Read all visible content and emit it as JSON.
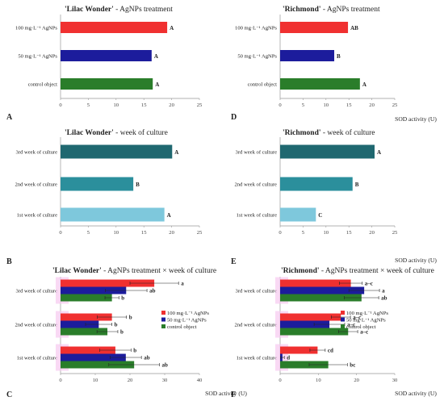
{
  "chart_data": [
    {
      "panel": "A",
      "type": "bar",
      "title": "'Lilac Wonder' - AgNPs treatment",
      "title_cultivar": "'Lilac Wonder'",
      "title_rest": " - AgNPs treatment",
      "xlabel": "",
      "xlim": [
        0,
        25
      ],
      "xticks": [
        0,
        5,
        10,
        15,
        20,
        25
      ],
      "categories": [
        "100 mg·L⁻¹ AgNPs",
        "50 mg·L⁻¹ AgNPs",
        "control object"
      ],
      "series": [
        {
          "values": [
            19.2,
            16.4,
            16.6
          ],
          "colors": [
            "#f03030",
            "#1c1c9c",
            "#2a7d2a"
          ],
          "labels": [
            "A",
            "A",
            "A"
          ]
        }
      ]
    },
    {
      "panel": "D",
      "type": "bar",
      "title": "'Richmond' - AgNPs treatment",
      "title_cultivar": "'Richmond'",
      "title_rest": " - AgNPs treatment",
      "xlabel": "SOD activity (U)",
      "xlim": [
        0,
        25
      ],
      "xticks": [
        0,
        5,
        10,
        15,
        20,
        25
      ],
      "categories": [
        "100 mg·L⁻¹ AgNPs",
        "50 mg·L⁻¹ AgNPs",
        "control object"
      ],
      "series": [
        {
          "values": [
            14.8,
            11.8,
            17.4
          ],
          "colors": [
            "#f03030",
            "#1c1c9c",
            "#2a7d2a"
          ],
          "labels": [
            "AB",
            "B",
            "A"
          ]
        }
      ]
    },
    {
      "panel": "B",
      "type": "bar",
      "title": "'Lilac Wonder' - week of culture",
      "title_cultivar": "'Lilac Wonder'",
      "title_rest": " - week of culture",
      "xlabel": "",
      "xlim": [
        0,
        25
      ],
      "xticks": [
        0,
        5,
        10,
        15,
        20,
        25
      ],
      "categories": [
        "3rd week of culture",
        "2nd week of culture",
        "1st week of culture"
      ],
      "series": [
        {
          "values": [
            20.1,
            13.1,
            18.7
          ],
          "colors": [
            "#1f6870",
            "#2b8f9c",
            "#7ec8dc"
          ],
          "labels": [
            "A",
            "B",
            "A"
          ]
        }
      ]
    },
    {
      "panel": "E",
      "type": "bar",
      "title": "'Richmond' - week of culture",
      "title_cultivar": "'Richmond'",
      "title_rest": " - week of culture",
      "xlabel": "SOD activity (U)",
      "xlim": [
        0,
        25
      ],
      "xticks": [
        0,
        5,
        10,
        15,
        20,
        25
      ],
      "categories": [
        "3rd week of culture",
        "2nd week of culture",
        "1st week of culture"
      ],
      "series": [
        {
          "values": [
            20.6,
            15.8,
            7.8
          ],
          "colors": [
            "#1f6870",
            "#2b8f9c",
            "#7ec8dc"
          ],
          "labels": [
            "A",
            "B",
            "C"
          ]
        }
      ]
    },
    {
      "panel": "C",
      "type": "bar",
      "title": "'Lilac Wonder' - AgNPs treatment × week of culture",
      "title_cultivar": "'Lilac Wonder'",
      "title_rest": " - AgNPs treatment × week of culture",
      "xlabel": "SOD activity (U)",
      "xlim": [
        0,
        40
      ],
      "xticks": [
        0,
        10,
        20,
        30,
        40
      ],
      "categories": [
        "3rd week of culture",
        "2nd week of culture",
        "1st week of culture"
      ],
      "legend": [
        "100 mg·L⁻¹ AgNPs",
        "50 mg·L⁻¹ AgNPs",
        "control object"
      ],
      "legend_position": "right",
      "series": [
        {
          "name": "100 mg·L⁻¹ AgNPs",
          "color": "#f03030",
          "values": [
            27.0,
            14.8,
            15.8
          ],
          "errors": [
            7.0,
            4.2,
            4.5
          ],
          "labels": [
            "a",
            "b",
            "b"
          ]
        },
        {
          "name": "50 mg·L⁻¹ AgNPs",
          "color": "#1c1c9c",
          "values": [
            18.9,
            11.0,
            18.8
          ],
          "errors": [
            6.0,
            3.8,
            4.5
          ],
          "labels": [
            "ab",
            "b",
            "ab"
          ]
        },
        {
          "name": "control object",
          "color": "#2a7d2a",
          "values": [
            14.8,
            13.5,
            21.2
          ],
          "errors": [
            2.0,
            3.0,
            7.3
          ],
          "labels": [
            "b",
            "b",
            "ab"
          ]
        }
      ]
    },
    {
      "panel": "F",
      "type": "bar",
      "title": "'Richmond' - AgNPs treatment × week of culture",
      "title_cultivar": "'Richmond'",
      "title_rest": " - AgNPs treatment × week of culture",
      "xlabel": "SOD activity (U)",
      "xlim": [
        0,
        30
      ],
      "xticks": [
        0,
        10,
        20,
        30
      ],
      "categories": [
        "3rd week of culture",
        "2nd week of culture",
        "1st week of culture"
      ],
      "legend": [
        "100 mg·L⁻¹ AgNPs",
        "50 mg·L⁻¹ AgNPs",
        "control object"
      ],
      "legend_position": "right",
      "series": [
        {
          "name": "100 mg·L⁻¹ AgNPs",
          "color": "#f03030",
          "values": [
            18.5,
            15.9,
            9.8
          ],
          "errors": [
            3.0,
            2.5,
            2.0
          ],
          "labels": [
            "a–c",
            "a–c",
            "cd"
          ]
        },
        {
          "name": "50 mg·L⁻¹ AgNPs",
          "color": "#1c1c9c",
          "values": [
            22.0,
            12.9,
            0.6
          ],
          "errors": [
            4.0,
            4.0,
            0.5
          ],
          "labels": [
            "a",
            "a–c",
            "d"
          ]
        },
        {
          "name": "control object",
          "color": "#2a7d2a",
          "values": [
            21.3,
            17.8,
            12.6
          ],
          "errors": [
            4.5,
            2.5,
            5.0
          ],
          "labels": [
            "ab",
            "a–c",
            "bc"
          ]
        }
      ]
    }
  ],
  "panel_letters": [
    "A",
    "D",
    "B",
    "E",
    "C",
    "F"
  ]
}
